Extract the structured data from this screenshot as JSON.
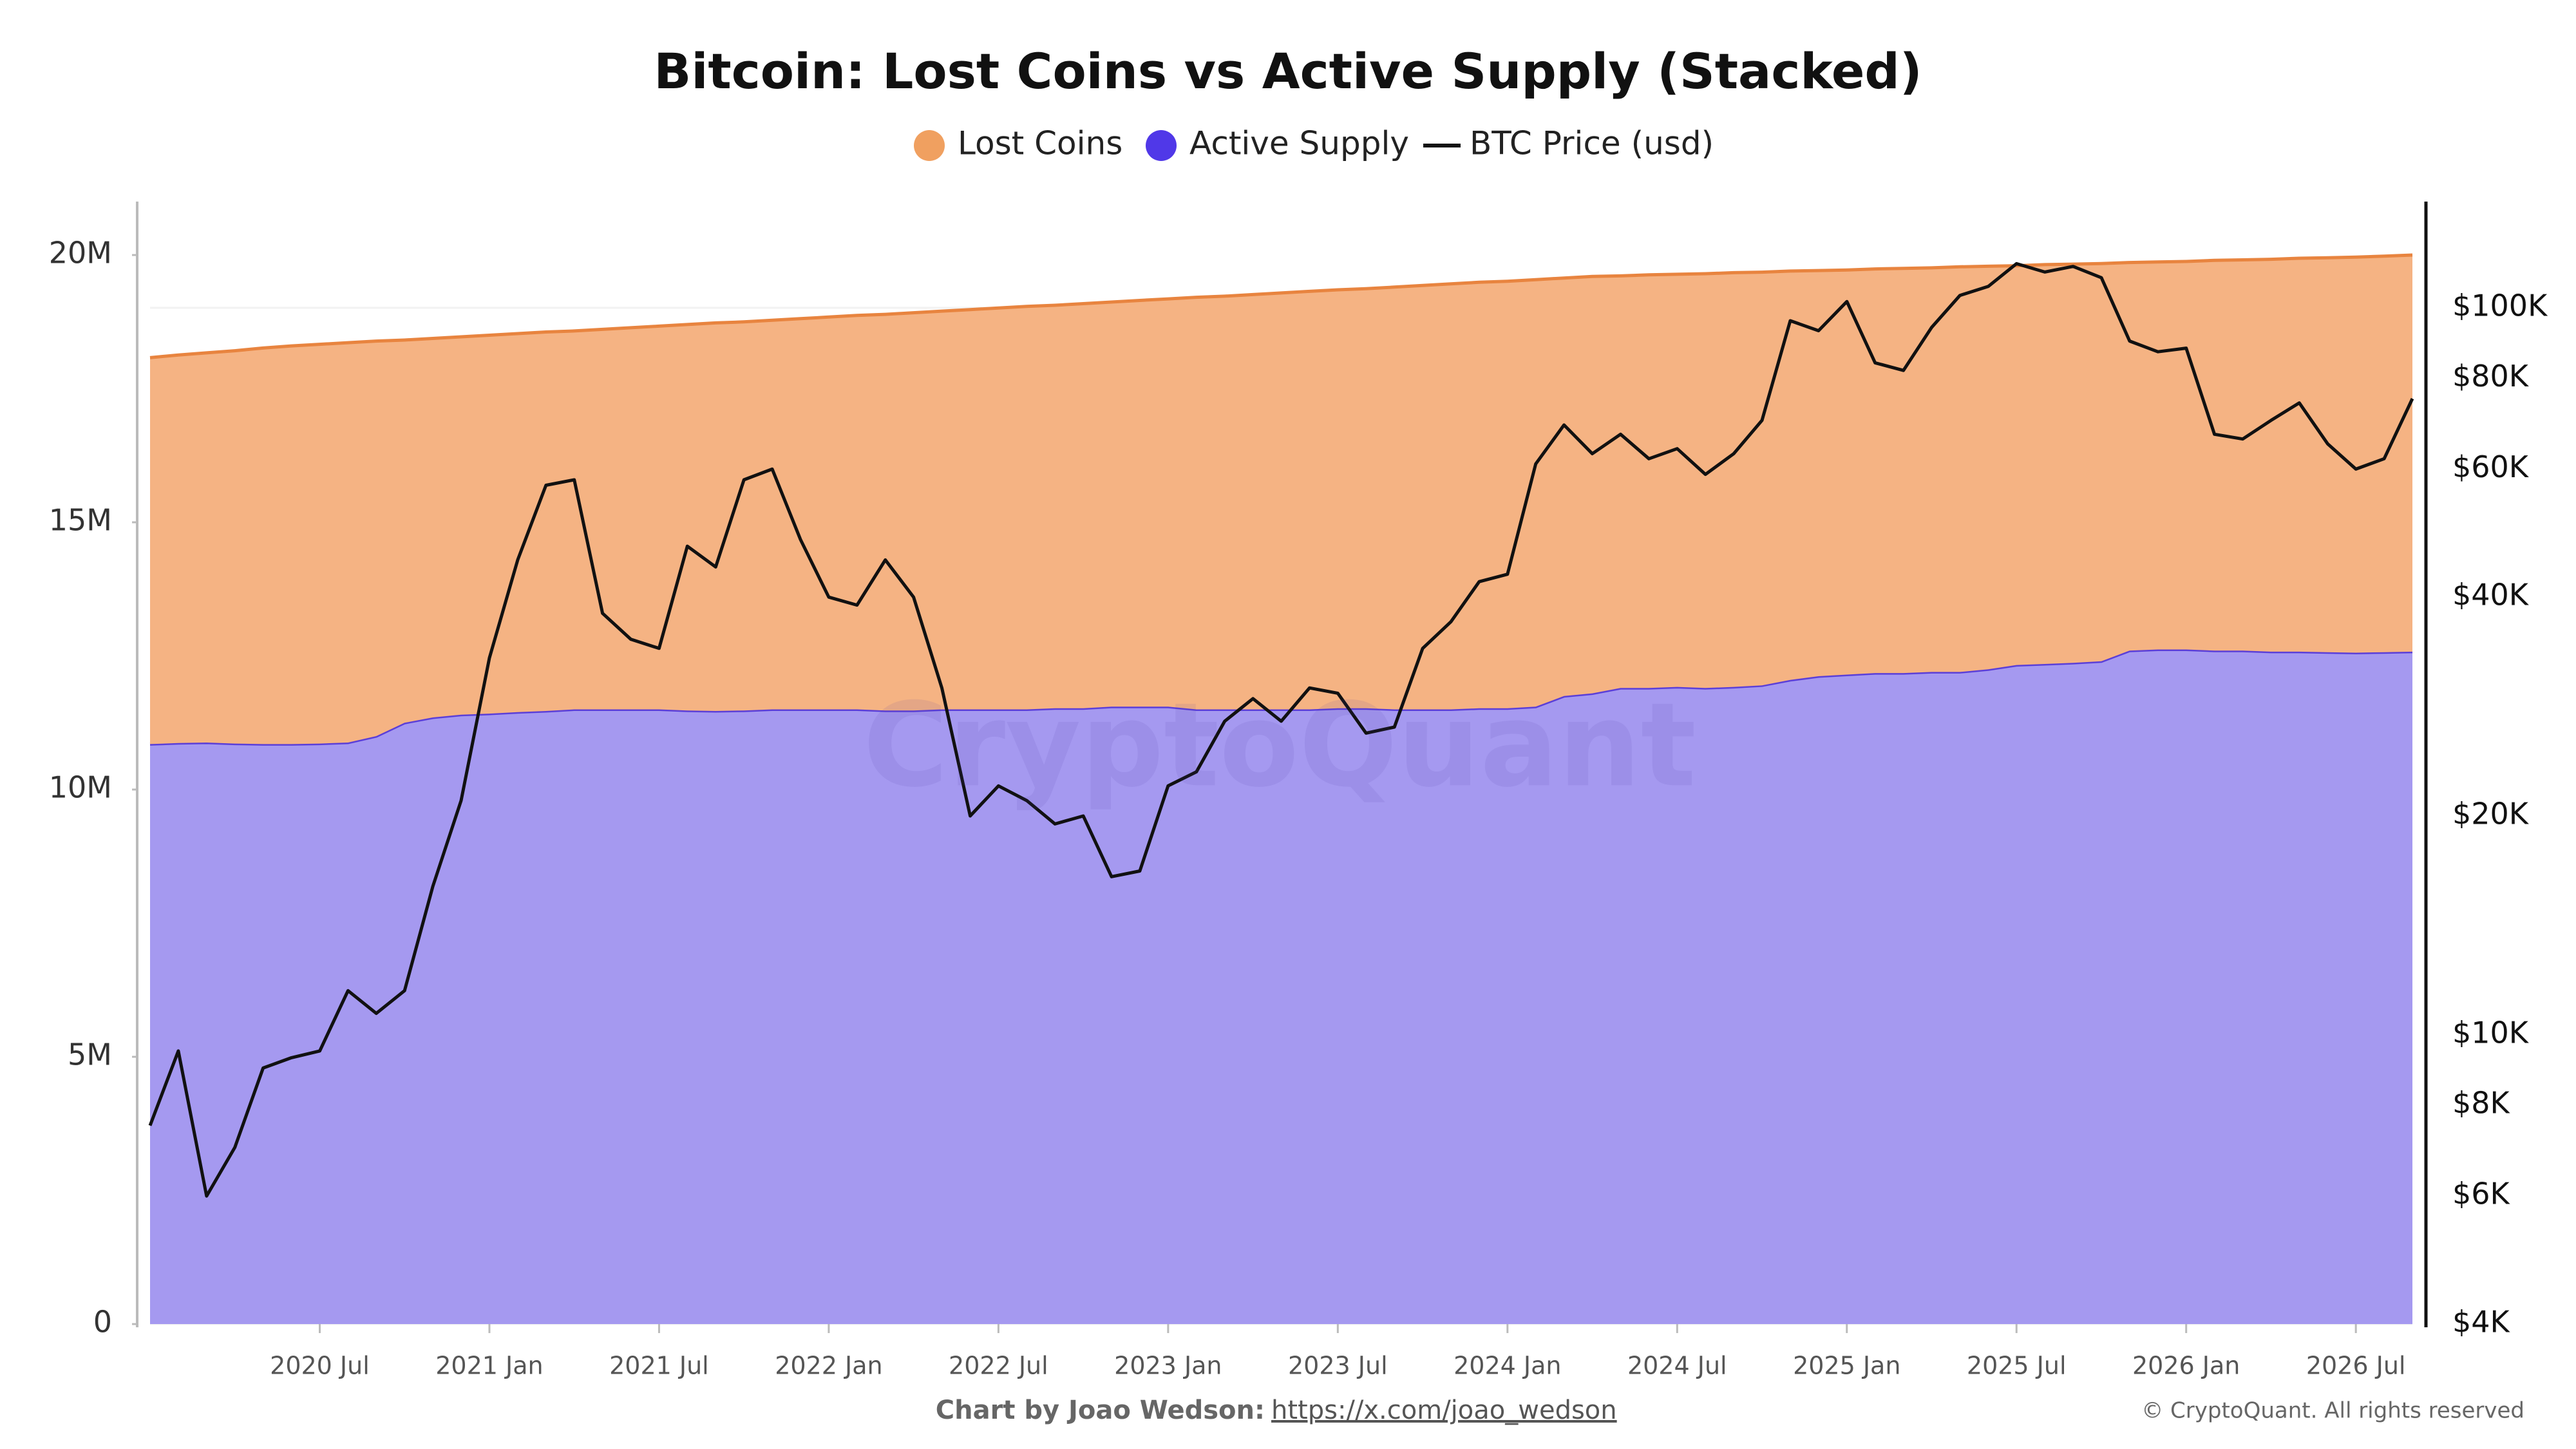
{
  "chart_data": {
    "type": "area",
    "stacked": true,
    "title": "Bitcoin: Lost Coins vs Active Supply (Stacked)",
    "watermark": "CryptoQuant",
    "footer": {
      "credit": "Chart by Joao Wedson:",
      "link": "https://x.com/joao_wedson",
      "copyright": "© CryptoQuant. All rights reserved"
    },
    "x": [
      "2020-01",
      "2020-02",
      "2020-03",
      "2020-04",
      "2020-05",
      "2020-06",
      "2020-07",
      "2020-08",
      "2020-09",
      "2020-10",
      "2020-11",
      "2020-12",
      "2021-01",
      "2021-02",
      "2021-03",
      "2021-04",
      "2021-05",
      "2021-06",
      "2021-07",
      "2021-08",
      "2021-09",
      "2021-10",
      "2021-11",
      "2021-12",
      "2022-01",
      "2022-02",
      "2022-03",
      "2022-04",
      "2022-05",
      "2022-06",
      "2022-07",
      "2022-08",
      "2022-09",
      "2022-10",
      "2022-11",
      "2022-12",
      "2023-01",
      "2023-02",
      "2023-03",
      "2023-04",
      "2023-05",
      "2023-06",
      "2023-07",
      "2023-08",
      "2023-09",
      "2023-10",
      "2023-11",
      "2023-12",
      "2024-01",
      "2024-02",
      "2024-03",
      "2024-04",
      "2024-05",
      "2024-06",
      "2024-07",
      "2024-08",
      "2024-09",
      "2024-10",
      "2024-11",
      "2024-12",
      "2025-01",
      "2025-02",
      "2025-03",
      "2025-04",
      "2025-05",
      "2025-06",
      "2025-07",
      "2025-08",
      "2025-09",
      "2025-10",
      "2025-11",
      "2025-12",
      "2026-01",
      "2026-02",
      "2026-03",
      "2026-04",
      "2026-05",
      "2026-06",
      "2026-07",
      "2026-08",
      "2026-09"
    ],
    "xticks": [
      {
        "value": "2020-07",
        "label": "2020 Jul"
      },
      {
        "value": "2021-01",
        "label": "2021 Jan"
      },
      {
        "value": "2021-07",
        "label": "2021 Jul"
      },
      {
        "value": "2022-01",
        "label": "2022 Jan"
      },
      {
        "value": "2022-07",
        "label": "2022 Jul"
      },
      {
        "value": "2023-01",
        "label": "2023 Jan"
      },
      {
        "value": "2023-07",
        "label": "2023 Jul"
      },
      {
        "value": "2024-01",
        "label": "2024 Jan"
      },
      {
        "value": "2024-07",
        "label": "2024 Jul"
      },
      {
        "value": "2025-01",
        "label": "2025 Jan"
      },
      {
        "value": "2025-07",
        "label": "2025 Jul"
      },
      {
        "value": "2026-01",
        "label": "2026 Jan"
      },
      {
        "value": "2026-07",
        "label": "2026 Jul"
      }
    ],
    "ylim": [
      0,
      21000000
    ],
    "yticks": [
      0,
      {
        "value": 5000000,
        "label": "5M"
      },
      {
        "value": 10000000,
        "label": "10M"
      },
      {
        "value": 15000000,
        "label": "15M"
      },
      {
        "value": 20000000,
        "label": "20M"
      }
    ],
    "y2lim": [
      4000,
      140000
    ],
    "y2log": true,
    "y2ticks": [
      {
        "value": 4000,
        "label": "$4K"
      },
      {
        "value": 6000,
        "label": "$6K"
      },
      {
        "value": 8000,
        "label": "$8K"
      },
      {
        "value": 10000,
        "label": "$10K"
      },
      {
        "value": 20000,
        "label": "$20K"
      },
      {
        "value": 40000,
        "label": "$40K"
      },
      {
        "value": 60000,
        "label": "$60K"
      },
      {
        "value": 80000,
        "label": "$80K"
      },
      {
        "value": 100000,
        "label": "$100K"
      }
    ],
    "grid": true,
    "series": [
      {
        "name": "Active Supply",
        "type": "area",
        "color": "#5038e8",
        "fill": "#a599f0",
        "values": [
          10850000,
          10870000,
          10880000,
          10860000,
          10850000,
          10850000,
          10860000,
          10880000,
          11000000,
          11250000,
          11350000,
          11400000,
          11420000,
          11450000,
          11470000,
          11500000,
          11500000,
          11500000,
          11500000,
          11480000,
          11470000,
          11480000,
          11500000,
          11500000,
          11500000,
          11500000,
          11480000,
          11480000,
          11500000,
          11500000,
          11500000,
          11500000,
          11520000,
          11520000,
          11550000,
          11550000,
          11550000,
          11500000,
          11500000,
          11500000,
          11500000,
          11500000,
          11520000,
          11520000,
          11500000,
          11500000,
          11500000,
          11520000,
          11520000,
          11550000,
          11750000,
          11800000,
          11900000,
          11900000,
          11920000,
          11900000,
          11920000,
          11950000,
          12050000,
          12120000,
          12150000,
          12180000,
          12180000,
          12200000,
          12200000,
          12250000,
          12330000,
          12350000,
          12370000,
          12400000,
          12600000,
          12620000,
          12620000,
          12600000,
          12600000,
          12580000,
          12580000,
          12570000,
          12560000,
          12570000,
          12580000
        ]
      },
      {
        "name": "Lost Coins",
        "type": "area",
        "color": "#f0a060",
        "fill": "#f5b383",
        "values": [
          7230000,
          7260000,
          7290000,
          7350000,
          7410000,
          7450000,
          7470000,
          7480000,
          7390000,
          7160000,
          7090000,
          7070000,
          7080000,
          7080000,
          7090000,
          7080000,
          7110000,
          7140000,
          7170000,
          7220000,
          7260000,
          7270000,
          7280000,
          7310000,
          7340000,
          7370000,
          7410000,
          7440000,
          7450000,
          7480000,
          7510000,
          7540000,
          7540000,
          7570000,
          7570000,
          7600000,
          7630000,
          7710000,
          7730000,
          7760000,
          7790000,
          7820000,
          7830000,
          7850000,
          7900000,
          7930000,
          7960000,
          7970000,
          7990000,
          7990000,
          7820000,
          7800000,
          7710000,
          7730000,
          7720000,
          7750000,
          7750000,
          7730000,
          7650000,
          7590000,
          7570000,
          7560000,
          7570000,
          7560000,
          7580000,
          7540000,
          7470000,
          7470000,
          7460000,
          7440000,
          7260000,
          7250000,
          7260000,
          7300000,
          7310000,
          7340000,
          7360000,
          7380000,
          7400000,
          7410000,
          7420000
        ]
      },
      {
        "name": "BTC Price (usd)",
        "type": "line",
        "axis": "y2",
        "color": "#111111",
        "values": [
          7500,
          9500,
          6000,
          7000,
          9000,
          9300,
          9500,
          11500,
          10700,
          11500,
          16000,
          21000,
          33000,
          45000,
          57000,
          58000,
          38000,
          35000,
          34000,
          47000,
          44000,
          58000,
          60000,
          48000,
          40000,
          39000,
          45000,
          40000,
          30000,
          20000,
          22000,
          21000,
          19500,
          20000,
          16500,
          16800,
          22000,
          23000,
          27000,
          29000,
          27000,
          30000,
          29500,
          26000,
          26500,
          34000,
          37000,
          42000,
          43000,
          61000,
          69000,
          63000,
          67000,
          62000,
          64000,
          59000,
          63000,
          70000,
          96000,
          93000,
          102000,
          84000,
          82000,
          94000,
          104000,
          107000,
          115000,
          112000,
          114000,
          110000,
          90000,
          87000,
          88000,
          67000,
          66000,
          70000,
          74000,
          65000,
          60000,
          62000,
          75000
        ]
      }
    ],
    "legend": "top"
  }
}
